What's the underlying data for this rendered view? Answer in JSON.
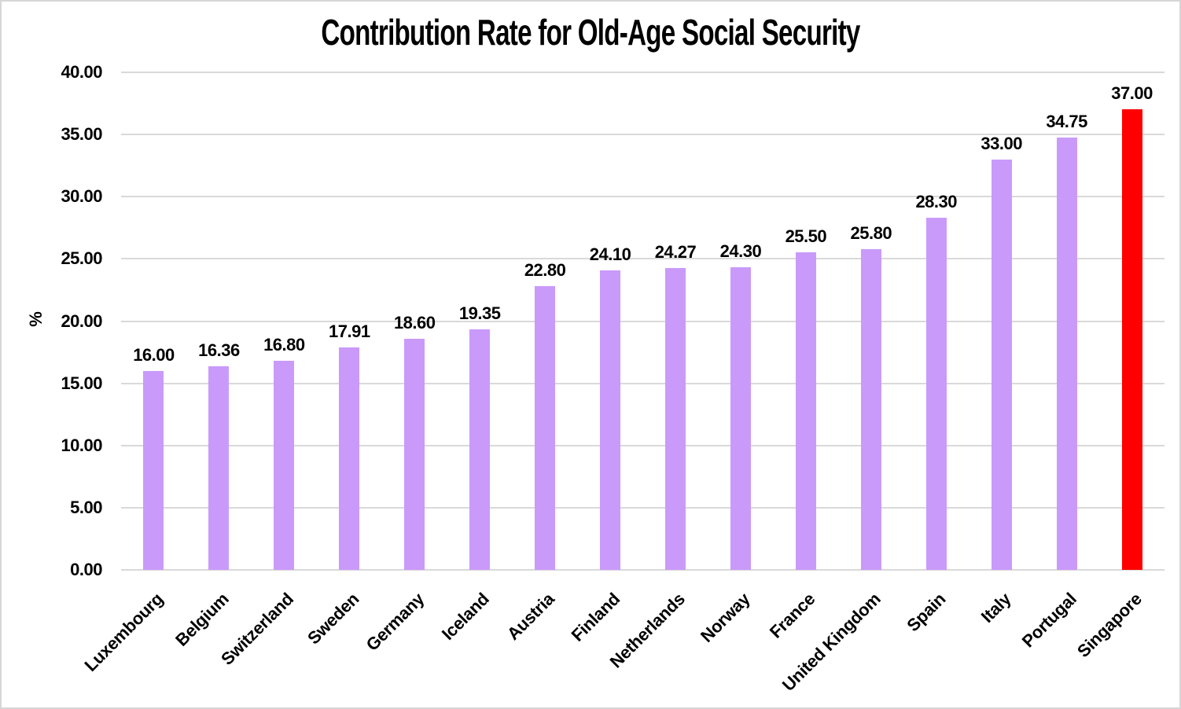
{
  "chart_data": {
    "type": "bar",
    "title": "Contribution Rate for Old-Age Social Security",
    "xlabel": "",
    "ylabel": "%",
    "ylim": [
      0,
      40
    ],
    "ytick_step": 5,
    "ytick_labels": [
      "0.00",
      "5.00",
      "10.00",
      "15.00",
      "20.00",
      "25.00",
      "30.00",
      "35.00",
      "40.00"
    ],
    "grid": true,
    "legend_position": "none",
    "categories": [
      "Luxembourg",
      "Belgium",
      "Switzerland",
      "Sweden",
      "Germany",
      "Iceland",
      "Austria",
      "Finland",
      "Netherlands",
      "Norway",
      "France",
      "United Kingdom",
      "Spain",
      "Italy",
      "Portugal",
      "Singapore"
    ],
    "values": [
      16.0,
      16.36,
      16.8,
      17.91,
      18.6,
      19.35,
      22.8,
      24.1,
      24.27,
      24.3,
      25.5,
      25.8,
      28.3,
      33.0,
      34.75,
      37.0
    ],
    "value_labels": [
      "16.00",
      "16.36",
      "16.80",
      "17.91",
      "18.60",
      "19.35",
      "22.80",
      "24.10",
      "24.27",
      "24.30",
      "25.50",
      "25.80",
      "28.30",
      "33.00",
      "34.75",
      "37.00"
    ],
    "bar_color_default": "#CA9AFA",
    "bar_color_highlight": "#FF0000",
    "highlight_category": "Singapore",
    "gridline_color": "#D9D9D9"
  }
}
